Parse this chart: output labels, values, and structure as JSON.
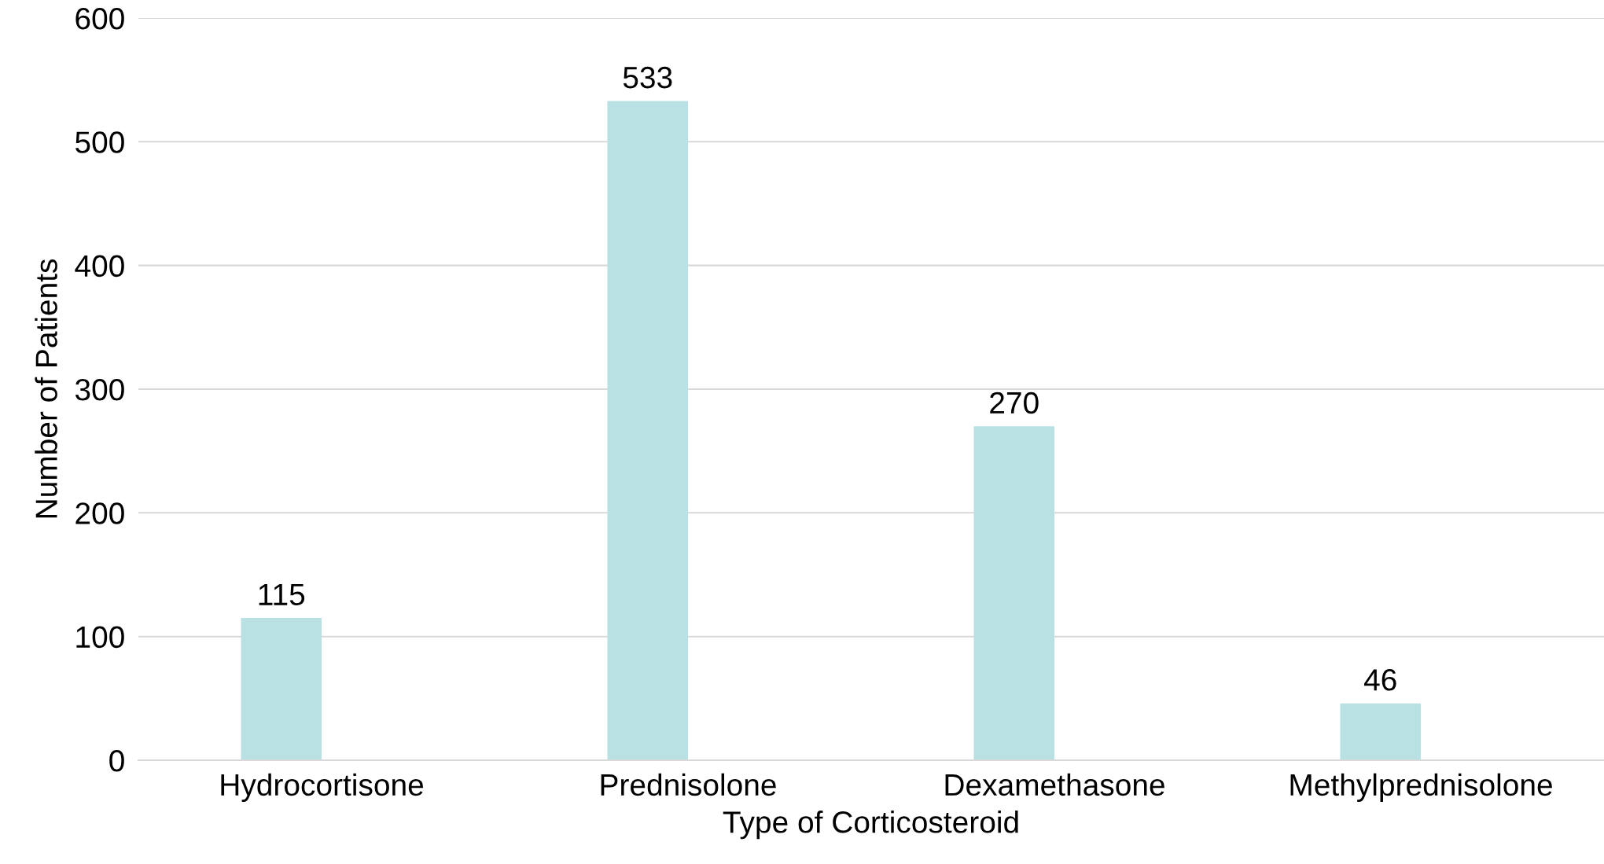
{
  "chart_data": {
    "type": "bar",
    "xlabel": "Type of Corticosteroid",
    "ylabel": "Number of Patients",
    "categories": [
      "Hydrocortisone",
      "Prednisolone",
      "Dexamethasone",
      "Methylprednisolone"
    ],
    "values": [
      115,
      533,
      270,
      46
    ],
    "color": "#b9e0e3",
    "ylim": [
      0,
      600
    ],
    "yticks": [
      0,
      100,
      200,
      300,
      400,
      500,
      600
    ],
    "grid": "y",
    "data_labels": true
  }
}
